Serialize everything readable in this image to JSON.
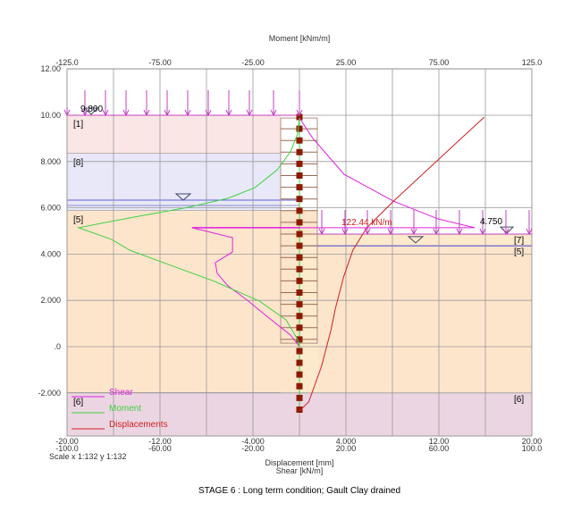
{
  "chart_data": {
    "type": "line",
    "title": "STAGE 6 : Long term condition; Gault Clay drained",
    "top_axis_label": "Moment [kNm/m]",
    "top_ticks": [
      "-125.0",
      "-75.00",
      "-25.00",
      "25.00",
      "75.00",
      "125.0"
    ],
    "bottom_axis_label_1": "Displacement [mm]",
    "bottom_axis_label_2": "Shear [kN/m]",
    "bottom_ticks_displacement": [
      "-20.00",
      "-12.00",
      "-4.000",
      "4.000",
      "12.00",
      "20.00"
    ],
    "bottom_ticks_shear": [
      "-100.0",
      "-60.00",
      "-20.00",
      "20.00",
      "60.00",
      "100.0"
    ],
    "y_ticks": [
      "12.00",
      "10.00",
      "8.000",
      "6.000",
      "4.000",
      "2.000",
      ".0",
      "-2.000"
    ],
    "y_tick_values": [
      12,
      10,
      8,
      6,
      4,
      2,
      0,
      -2
    ],
    "ylim": [
      -3.86,
      12
    ],
    "moment_xlim": [
      -125,
      125
    ],
    "disp_xlim": [
      -20,
      20
    ],
    "shear_xlim": [
      -100,
      100
    ],
    "scale": "Scale x 1:132  y 1:132",
    "left_level": "9.800",
    "right_level": "4.750",
    "strut_label": "122.44 kN/m",
    "strut_force": 122.44,
    "layers_left": [
      {
        "label": "[1]",
        "top": 10,
        "bottom": 8.34,
        "color": "#fbe6e6"
      },
      {
        "label": "[8]",
        "top": 8.34,
        "bottom": 5.87,
        "color": "#e8e8f8"
      },
      {
        "label": "[5]",
        "top": 5.87,
        "bottom": -2,
        "color": "#fde5cc"
      },
      {
        "label": "[6]",
        "top": -2,
        "bottom": -3.86,
        "color": "#ecd5e2"
      }
    ],
    "layers_right": [
      {
        "label": "[7]",
        "top": 4.86,
        "bottom": 4.36,
        "color": "#fdeacc"
      },
      {
        "label": "[5]",
        "top": 4.36,
        "bottom": -2,
        "color": "#fde5cc"
      },
      {
        "label": "[6]",
        "top": -2,
        "bottom": -3.86,
        "color": "#ecd5e2"
      }
    ],
    "water_left": 6.33,
    "water_right": 4.6,
    "series": [
      {
        "name": "Shear",
        "color": "#e020e0",
        "axis": "shear",
        "points": [
          [
            0,
            9.88
          ],
          [
            5.8,
            9.0
          ],
          [
            19.2,
            7.45
          ],
          [
            40.4,
            6.29
          ],
          [
            59.6,
            5.52
          ],
          [
            75.4,
            5.14
          ],
          [
            -46.2,
            5.14
          ],
          [
            -28.8,
            4.71
          ],
          [
            -28.8,
            4.09
          ],
          [
            -36.2,
            3.63
          ],
          [
            -35.4,
            3.17
          ],
          [
            -30.8,
            2.63
          ],
          [
            -23,
            2.05
          ],
          [
            -13.5,
            1.27
          ],
          [
            -3.8,
            0.5
          ],
          [
            0,
            0
          ]
        ]
      },
      {
        "name": "Moment",
        "color": "#40d040",
        "axis": "moment",
        "points": [
          [
            0,
            9.88
          ],
          [
            -1,
            9.19
          ],
          [
            -4.8,
            8.42
          ],
          [
            -12,
            7.64
          ],
          [
            -24,
            6.87
          ],
          [
            -38.5,
            6.41
          ],
          [
            -60,
            6.02
          ],
          [
            -89,
            5.6
          ],
          [
            -118.8,
            5.14
          ],
          [
            -101,
            4.63
          ],
          [
            -91.3,
            4.17
          ],
          [
            -74.5,
            3.67
          ],
          [
            -45.7,
            2.82
          ],
          [
            -21.6,
            1.97
          ],
          [
            -7.2,
            1.16
          ],
          [
            -1,
            0.31
          ],
          [
            0,
            0
          ]
        ]
      },
      {
        "name": "Displacements",
        "color": "#d02020",
        "axis": "disp",
        "points": [
          [
            15.9,
            9.92
          ],
          [
            8.1,
            6.29
          ],
          [
            5.8,
            5.14
          ],
          [
            4.6,
            4.17
          ],
          [
            3.8,
            3.01
          ],
          [
            3.1,
            1.66
          ],
          [
            2.7,
            0.69
          ],
          [
            1.9,
            -0.85
          ],
          [
            0.8,
            -2.39
          ],
          [
            0,
            -2.78
          ]
        ]
      }
    ]
  }
}
